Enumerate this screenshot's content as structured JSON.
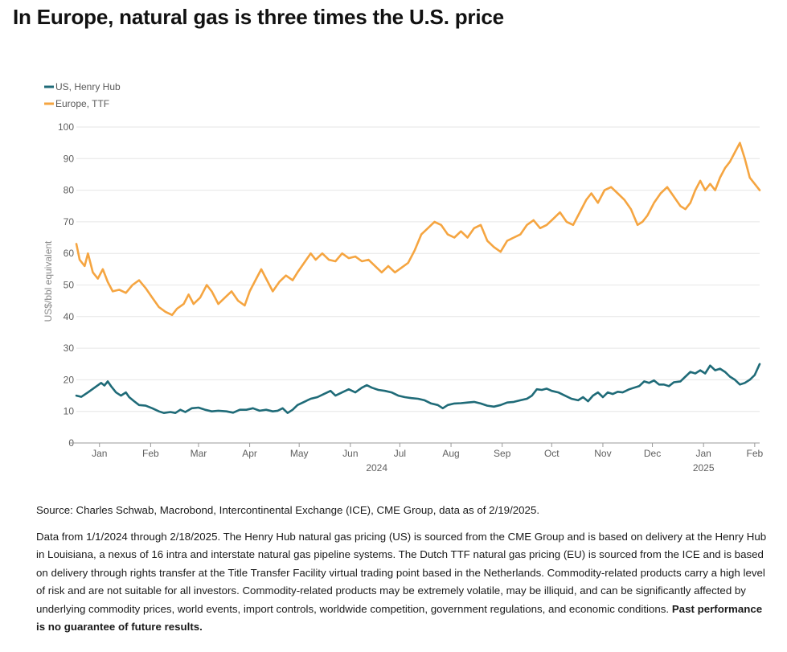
{
  "headline": "In Europe, natural gas is three times the U.S. price",
  "source": "Source: Charles Schwab, Macrobond, Intercontinental Exchange (ICE), CME Group, data as of 2/19/2025.",
  "disclaimer": {
    "text": "Data from 1/1/2024 through 2/18/2025. The Henry Hub natural gas pricing (US) is sourced from the CME Group and is based on delivery at the Henry Hub in Louisiana, a nexus of 16 intra and interstate natural gas pipeline systems. The Dutch TTF natural gas pricing (EU) is sourced from the ICE and is based on delivery through rights transfer at the Title Transfer Facility virtual trading point based in the Netherlands. Commodity-related products carry a high level of risk and are not suitable for all investors. Commodity-related products may be extremely volatile, may be illiquid, and can be significantly affected by underlying commodity prices, world events, import controls, worldwide competition, government regulations, and economic conditions.",
    "bold": "Past performance is no guarantee of future results."
  },
  "chart_data": {
    "type": "line",
    "ylabel": "US$/bbl equivalent",
    "ylim": [
      0,
      100
    ],
    "yticks": [
      0,
      10,
      20,
      30,
      40,
      50,
      60,
      70,
      80,
      90,
      100
    ],
    "xlim": [
      "2024-01-01",
      "2025-02-18"
    ],
    "xticks": [
      {
        "label": "Jan",
        "date": "2024-01-15"
      },
      {
        "label": "Feb",
        "date": "2024-02-15"
      },
      {
        "label": "Mar",
        "date": "2024-03-15"
      },
      {
        "label": "Apr",
        "date": "2024-04-15"
      },
      {
        "label": "May",
        "date": "2024-05-15"
      },
      {
        "label": "Jun",
        "date": "2024-06-15"
      },
      {
        "label": "Jul",
        "date": "2024-07-15"
      },
      {
        "label": "Aug",
        "date": "2024-08-15"
      },
      {
        "label": "Sep",
        "date": "2024-09-15"
      },
      {
        "label": "Oct",
        "date": "2024-10-15"
      },
      {
        "label": "Nov",
        "date": "2024-11-15"
      },
      {
        "label": "Dec",
        "date": "2024-12-15"
      },
      {
        "label": "Jan",
        "date": "2025-01-15"
      },
      {
        "label": "Feb",
        "date": "2025-02-15"
      }
    ],
    "year_labels": [
      {
        "label": "2024",
        "date": "2024-07-01"
      },
      {
        "label": "2025",
        "date": "2025-01-15"
      }
    ],
    "grid": true,
    "legend_position": "top-left",
    "series": [
      {
        "name": "US, Henry Hub",
        "color": "#1f6b78",
        "points": [
          [
            "2024-01-01",
            15
          ],
          [
            "2024-01-04",
            14.6
          ],
          [
            "2024-01-08",
            16
          ],
          [
            "2024-01-12",
            17.5
          ],
          [
            "2024-01-16",
            19
          ],
          [
            "2024-01-18",
            18.2
          ],
          [
            "2024-01-20",
            19.5
          ],
          [
            "2024-01-22",
            18
          ],
          [
            "2024-01-25",
            16
          ],
          [
            "2024-01-28",
            15
          ],
          [
            "2024-01-31",
            16
          ],
          [
            "2024-02-02",
            14.5
          ],
          [
            "2024-02-05",
            13.2
          ],
          [
            "2024-02-08",
            12
          ],
          [
            "2024-02-12",
            11.8
          ],
          [
            "2024-02-16",
            11
          ],
          [
            "2024-02-20",
            10
          ],
          [
            "2024-02-23",
            9.5
          ],
          [
            "2024-02-27",
            9.8
          ],
          [
            "2024-03-01",
            9.5
          ],
          [
            "2024-03-04",
            10.5
          ],
          [
            "2024-03-07",
            9.8
          ],
          [
            "2024-03-11",
            11
          ],
          [
            "2024-03-15",
            11.2
          ],
          [
            "2024-03-19",
            10.5
          ],
          [
            "2024-03-23",
            10
          ],
          [
            "2024-03-27",
            10.2
          ],
          [
            "2024-04-01",
            10
          ],
          [
            "2024-04-05",
            9.6
          ],
          [
            "2024-04-09",
            10.5
          ],
          [
            "2024-04-13",
            10.5
          ],
          [
            "2024-04-17",
            11
          ],
          [
            "2024-04-21",
            10.2
          ],
          [
            "2024-04-25",
            10.5
          ],
          [
            "2024-04-29",
            10
          ],
          [
            "2024-05-02",
            10.2
          ],
          [
            "2024-05-05",
            11
          ],
          [
            "2024-05-08",
            9.5
          ],
          [
            "2024-05-11",
            10.5
          ],
          [
            "2024-05-14",
            12
          ],
          [
            "2024-05-18",
            13
          ],
          [
            "2024-05-22",
            14
          ],
          [
            "2024-05-26",
            14.5
          ],
          [
            "2024-05-30",
            15.5
          ],
          [
            "2024-06-03",
            16.5
          ],
          [
            "2024-06-06",
            15
          ],
          [
            "2024-06-10",
            16
          ],
          [
            "2024-06-14",
            17
          ],
          [
            "2024-06-18",
            16
          ],
          [
            "2024-06-22",
            17.5
          ],
          [
            "2024-06-25",
            18.3
          ],
          [
            "2024-06-28",
            17.5
          ],
          [
            "2024-07-02",
            16.8
          ],
          [
            "2024-07-06",
            16.5
          ],
          [
            "2024-07-10",
            16
          ],
          [
            "2024-07-14",
            15
          ],
          [
            "2024-07-18",
            14.5
          ],
          [
            "2024-07-22",
            14.2
          ],
          [
            "2024-07-26",
            14
          ],
          [
            "2024-07-30",
            13.5
          ],
          [
            "2024-08-03",
            12.5
          ],
          [
            "2024-08-07",
            12
          ],
          [
            "2024-08-10",
            11
          ],
          [
            "2024-08-13",
            12
          ],
          [
            "2024-08-17",
            12.5
          ],
          [
            "2024-08-21",
            12.6
          ],
          [
            "2024-08-25",
            12.8
          ],
          [
            "2024-08-29",
            13
          ],
          [
            "2024-09-02",
            12.5
          ],
          [
            "2024-09-06",
            11.8
          ],
          [
            "2024-09-10",
            11.5
          ],
          [
            "2024-09-14",
            12
          ],
          [
            "2024-09-18",
            12.8
          ],
          [
            "2024-09-22",
            13
          ],
          [
            "2024-09-26",
            13.5
          ],
          [
            "2024-09-30",
            14
          ],
          [
            "2024-10-03",
            15
          ],
          [
            "2024-10-06",
            17
          ],
          [
            "2024-10-09",
            16.8
          ],
          [
            "2024-10-12",
            17.2
          ],
          [
            "2024-10-15",
            16.5
          ],
          [
            "2024-10-19",
            16
          ],
          [
            "2024-10-23",
            15
          ],
          [
            "2024-10-27",
            14
          ],
          [
            "2024-10-31",
            13.5
          ],
          [
            "2024-11-03",
            14.5
          ],
          [
            "2024-11-06",
            13.2
          ],
          [
            "2024-11-09",
            15
          ],
          [
            "2024-11-12",
            16
          ],
          [
            "2024-11-15",
            14.5
          ],
          [
            "2024-11-18",
            16
          ],
          [
            "2024-11-21",
            15.5
          ],
          [
            "2024-11-24",
            16.2
          ],
          [
            "2024-11-27",
            16
          ],
          [
            "2024-12-01",
            17
          ],
          [
            "2024-12-04",
            17.5
          ],
          [
            "2024-12-07",
            18
          ],
          [
            "2024-12-10",
            19.5
          ],
          [
            "2024-12-13",
            19
          ],
          [
            "2024-12-16",
            19.8
          ],
          [
            "2024-12-19",
            18.5
          ],
          [
            "2024-12-22",
            18.5
          ],
          [
            "2024-12-25",
            18
          ],
          [
            "2024-12-28",
            19.2
          ],
          [
            "2025-01-01",
            19.5
          ],
          [
            "2025-01-04",
            21
          ],
          [
            "2025-01-07",
            22.5
          ],
          [
            "2025-01-10",
            22
          ],
          [
            "2025-01-13",
            23
          ],
          [
            "2025-01-16",
            22
          ],
          [
            "2025-01-19",
            24.5
          ],
          [
            "2025-01-22",
            23
          ],
          [
            "2025-01-25",
            23.5
          ],
          [
            "2025-01-28",
            22.5
          ],
          [
            "2025-01-31",
            21
          ],
          [
            "2025-02-03",
            20
          ],
          [
            "2025-02-06",
            18.5
          ],
          [
            "2025-02-09",
            19
          ],
          [
            "2025-02-12",
            20
          ],
          [
            "2025-02-15",
            21.5
          ],
          [
            "2025-02-18",
            25
          ]
        ]
      },
      {
        "name": "Europe, TTF",
        "color": "#f5a541",
        "points": [
          [
            "2024-01-01",
            63
          ],
          [
            "2024-01-03",
            58
          ],
          [
            "2024-01-06",
            56
          ],
          [
            "2024-01-08",
            60
          ],
          [
            "2024-01-11",
            54
          ],
          [
            "2024-01-14",
            52
          ],
          [
            "2024-01-17",
            55
          ],
          [
            "2024-01-20",
            51
          ],
          [
            "2024-01-23",
            48
          ],
          [
            "2024-01-27",
            48.5
          ],
          [
            "2024-01-31",
            47.5
          ],
          [
            "2024-02-04",
            50
          ],
          [
            "2024-02-08",
            51.5
          ],
          [
            "2024-02-12",
            49
          ],
          [
            "2024-02-16",
            46
          ],
          [
            "2024-02-20",
            43
          ],
          [
            "2024-02-24",
            41.5
          ],
          [
            "2024-02-28",
            40.5
          ],
          [
            "2024-03-02",
            42.5
          ],
          [
            "2024-03-06",
            44
          ],
          [
            "2024-03-09",
            47
          ],
          [
            "2024-03-12",
            44
          ],
          [
            "2024-03-16",
            46
          ],
          [
            "2024-03-20",
            50
          ],
          [
            "2024-03-23",
            48
          ],
          [
            "2024-03-27",
            44
          ],
          [
            "2024-03-31",
            46
          ],
          [
            "2024-04-04",
            48
          ],
          [
            "2024-04-08",
            45
          ],
          [
            "2024-04-12",
            43.5
          ],
          [
            "2024-04-15",
            48
          ],
          [
            "2024-04-19",
            52
          ],
          [
            "2024-04-22",
            55
          ],
          [
            "2024-04-25",
            52
          ],
          [
            "2024-04-29",
            48
          ],
          [
            "2024-05-03",
            51
          ],
          [
            "2024-05-07",
            53
          ],
          [
            "2024-05-11",
            51.5
          ],
          [
            "2024-05-14",
            54
          ],
          [
            "2024-05-18",
            57
          ],
          [
            "2024-05-22",
            60
          ],
          [
            "2024-05-25",
            58
          ],
          [
            "2024-05-29",
            60
          ],
          [
            "2024-06-02",
            58
          ],
          [
            "2024-06-06",
            57.5
          ],
          [
            "2024-06-10",
            60
          ],
          [
            "2024-06-14",
            58.5
          ],
          [
            "2024-06-18",
            59
          ],
          [
            "2024-06-22",
            57.5
          ],
          [
            "2024-06-26",
            58
          ],
          [
            "2024-06-30",
            56
          ],
          [
            "2024-07-04",
            54
          ],
          [
            "2024-07-08",
            56
          ],
          [
            "2024-07-12",
            54
          ],
          [
            "2024-07-16",
            55.5
          ],
          [
            "2024-07-20",
            57
          ],
          [
            "2024-07-24",
            61
          ],
          [
            "2024-07-28",
            66
          ],
          [
            "2024-08-01",
            68
          ],
          [
            "2024-08-05",
            70
          ],
          [
            "2024-08-09",
            69
          ],
          [
            "2024-08-13",
            66
          ],
          [
            "2024-08-17",
            65
          ],
          [
            "2024-08-21",
            67
          ],
          [
            "2024-08-25",
            65
          ],
          [
            "2024-08-29",
            68
          ],
          [
            "2024-09-02",
            69
          ],
          [
            "2024-09-06",
            64
          ],
          [
            "2024-09-10",
            62
          ],
          [
            "2024-09-14",
            60.5
          ],
          [
            "2024-09-18",
            64
          ],
          [
            "2024-09-22",
            65
          ],
          [
            "2024-09-26",
            66
          ],
          [
            "2024-09-30",
            69
          ],
          [
            "2024-10-04",
            70.5
          ],
          [
            "2024-10-08",
            68
          ],
          [
            "2024-10-12",
            69
          ],
          [
            "2024-10-16",
            71
          ],
          [
            "2024-10-20",
            73
          ],
          [
            "2024-10-24",
            70
          ],
          [
            "2024-10-28",
            69
          ],
          [
            "2024-11-01",
            73
          ],
          [
            "2024-11-05",
            77
          ],
          [
            "2024-11-08",
            79
          ],
          [
            "2024-11-12",
            76
          ],
          [
            "2024-11-16",
            80
          ],
          [
            "2024-11-20",
            81
          ],
          [
            "2024-11-24",
            79
          ],
          [
            "2024-11-28",
            77
          ],
          [
            "2024-12-02",
            74
          ],
          [
            "2024-12-06",
            69
          ],
          [
            "2024-12-09",
            70
          ],
          [
            "2024-12-12",
            72
          ],
          [
            "2024-12-16",
            76
          ],
          [
            "2024-12-20",
            79
          ],
          [
            "2024-12-24",
            81
          ],
          [
            "2024-12-28",
            78
          ],
          [
            "2025-01-01",
            75
          ],
          [
            "2025-01-04",
            74
          ],
          [
            "2025-01-07",
            76
          ],
          [
            "2025-01-10",
            80
          ],
          [
            "2025-01-13",
            83
          ],
          [
            "2025-01-16",
            80
          ],
          [
            "2025-01-19",
            82
          ],
          [
            "2025-01-22",
            80
          ],
          [
            "2025-01-25",
            84
          ],
          [
            "2025-01-28",
            87
          ],
          [
            "2025-01-31",
            89
          ],
          [
            "2025-02-03",
            92
          ],
          [
            "2025-02-06",
            95
          ],
          [
            "2025-02-09",
            90
          ],
          [
            "2025-02-12",
            84
          ],
          [
            "2025-02-15",
            82
          ],
          [
            "2025-02-18",
            80
          ]
        ]
      }
    ]
  }
}
